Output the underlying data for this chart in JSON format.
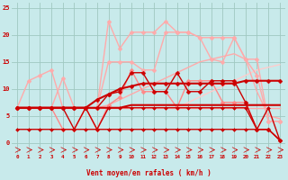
{
  "xlabel": "Vent moyen/en rafales ( km/h )",
  "xlim": [
    -0.5,
    23.5
  ],
  "ylim": [
    -2,
    26
  ],
  "xticks": [
    0,
    1,
    2,
    3,
    4,
    5,
    6,
    7,
    8,
    9,
    10,
    11,
    12,
    13,
    14,
    15,
    16,
    17,
    18,
    19,
    20,
    21,
    22,
    23
  ],
  "yticks": [
    0,
    5,
    10,
    15,
    20,
    25
  ],
  "bg_color": "#c8eaeb",
  "grid_color": "#a0c8c0",
  "lines": [
    {
      "x": [
        0,
        1,
        2,
        3,
        4,
        5,
        6,
        7,
        8,
        9,
        10,
        11,
        12,
        13,
        14,
        15,
        16,
        17,
        18,
        19,
        20,
        21,
        22,
        23
      ],
      "y": [
        6.5,
        6.5,
        6.5,
        6.5,
        6.5,
        6.5,
        6.5,
        6.5,
        6.5,
        6.5,
        6.5,
        6.5,
        6.5,
        6.5,
        6.5,
        6.5,
        6.5,
        6.5,
        6.5,
        6.5,
        6.5,
        6.5,
        6.5,
        6.5
      ],
      "color": "#ffaaaa",
      "lw": 1.0,
      "marker": null,
      "ms": 0,
      "ls": "-"
    },
    {
      "x": [
        0,
        1,
        2,
        3,
        4,
        5,
        6,
        7,
        8,
        9,
        10,
        11,
        12,
        13,
        14,
        15,
        16,
        17,
        18,
        19,
        20,
        21,
        22,
        23
      ],
      "y": [
        6.5,
        6.5,
        6.5,
        6.5,
        6.5,
        6.5,
        6.5,
        6.5,
        6.5,
        6.5,
        6.5,
        6.5,
        6.5,
        6.5,
        6.5,
        7.5,
        8.5,
        9.5,
        10.5,
        11.5,
        12.5,
        13.5,
        14.0,
        14.5
      ],
      "color": "#ffcccc",
      "lw": 1.0,
      "marker": null,
      "ms": 0,
      "ls": "-"
    },
    {
      "x": [
        0,
        1,
        2,
        3,
        4,
        5,
        6,
        7,
        8,
        9,
        10,
        11,
        12,
        13,
        14,
        15,
        16,
        17,
        18,
        19,
        20,
        21,
        22,
        23
      ],
      "y": [
        6.5,
        6.5,
        6.5,
        6.5,
        6.5,
        6.5,
        6.5,
        6.5,
        7.0,
        8.0,
        9.0,
        10.0,
        11.0,
        12.0,
        13.0,
        14.0,
        15.0,
        15.5,
        16.0,
        16.5,
        15.5,
        9.5,
        5.0,
        4.5
      ],
      "color": "#ffaaaa",
      "lw": 1.0,
      "marker": null,
      "ms": 0,
      "ls": "-"
    },
    {
      "x": [
        0,
        1,
        2,
        3,
        4,
        5,
        6,
        7,
        8,
        9,
        10,
        11,
        12,
        13,
        14,
        15,
        16,
        17,
        18,
        19,
        20,
        21,
        22,
        23
      ],
      "y": [
        6.5,
        11.5,
        12.5,
        13.5,
        6.5,
        6.5,
        6.5,
        6.5,
        22.5,
        17.5,
        20.5,
        20.5,
        20.5,
        22.5,
        20.5,
        20.5,
        19.5,
        19.5,
        19.5,
        19.5,
        15.5,
        12.5,
        4.0,
        4.0
      ],
      "color": "#ffaaaa",
      "lw": 1.0,
      "marker": "D",
      "ms": 2.5,
      "ls": "-"
    },
    {
      "x": [
        0,
        1,
        2,
        3,
        4,
        5,
        6,
        7,
        8,
        9,
        10,
        11,
        12,
        13,
        14,
        15,
        16,
        17,
        18,
        19,
        20,
        21,
        22,
        23
      ],
      "y": [
        6.5,
        6.5,
        6.5,
        6.5,
        12.0,
        6.5,
        6.5,
        6.5,
        15.0,
        15.0,
        15.0,
        13.5,
        13.5,
        20.5,
        20.5,
        20.5,
        19.5,
        15.5,
        15.0,
        19.5,
        15.5,
        15.5,
        4.0,
        4.0
      ],
      "color": "#ffaaaa",
      "lw": 1.0,
      "marker": "D",
      "ms": 2.5,
      "ls": "-"
    },
    {
      "x": [
        0,
        1,
        2,
        3,
        4,
        5,
        6,
        7,
        8,
        9,
        10,
        11,
        12,
        13,
        14,
        15,
        16,
        17,
        18,
        19,
        20,
        21,
        22,
        23
      ],
      "y": [
        6.5,
        6.5,
        6.5,
        6.5,
        2.5,
        2.5,
        6.5,
        2.5,
        7.0,
        8.5,
        13.5,
        9.5,
        9.5,
        9.5,
        6.5,
        11.5,
        11.5,
        11.5,
        7.5,
        7.5,
        7.5,
        2.5,
        2.5,
        0.5
      ],
      "color": "#ff8888",
      "lw": 1.0,
      "marker": "D",
      "ms": 2.5,
      "ls": "-"
    },
    {
      "x": [
        0,
        1,
        2,
        3,
        4,
        5,
        6,
        7,
        8,
        9,
        10,
        11,
        12,
        13,
        14,
        15,
        16,
        17,
        18,
        19,
        20,
        21,
        22,
        23
      ],
      "y": [
        2.5,
        2.5,
        2.5,
        2.5,
        2.5,
        2.5,
        2.5,
        2.5,
        2.5,
        2.5,
        2.5,
        2.5,
        2.5,
        2.5,
        2.5,
        2.5,
        2.5,
        2.5,
        2.5,
        2.5,
        2.5,
        2.5,
        2.5,
        0.5
      ],
      "color": "#cc0000",
      "lw": 1.0,
      "marker": "D",
      "ms": 2.0,
      "ls": "-"
    },
    {
      "x": [
        0,
        1,
        2,
        3,
        4,
        5,
        6,
        7,
        8,
        9,
        10,
        11,
        12,
        13,
        14,
        15,
        16,
        17,
        18,
        19,
        20,
        21,
        22,
        23
      ],
      "y": [
        6.5,
        6.5,
        6.5,
        6.5,
        6.5,
        2.5,
        6.5,
        2.5,
        6.5,
        6.5,
        6.5,
        6.5,
        6.5,
        6.5,
        6.5,
        6.5,
        6.5,
        6.5,
        6.5,
        6.5,
        6.5,
        2.5,
        6.5,
        0.5
      ],
      "color": "#cc0000",
      "lw": 1.0,
      "marker": "D",
      "ms": 2.0,
      "ls": "-"
    },
    {
      "x": [
        0,
        1,
        2,
        3,
        4,
        5,
        6,
        7,
        8,
        9,
        10,
        11,
        12,
        13,
        14,
        15,
        16,
        17,
        18,
        19,
        20,
        21,
        22,
        23
      ],
      "y": [
        6.5,
        6.5,
        6.5,
        6.5,
        6.5,
        6.5,
        6.5,
        6.5,
        6.5,
        6.5,
        7.0,
        7.0,
        7.0,
        7.0,
        7.0,
        7.0,
        7.0,
        7.0,
        7.0,
        7.0,
        7.0,
        7.0,
        7.0,
        7.0
      ],
      "color": "#cc0000",
      "lw": 1.5,
      "marker": null,
      "ms": 0,
      "ls": "-"
    },
    {
      "x": [
        0,
        1,
        2,
        3,
        4,
        5,
        6,
        7,
        8,
        9,
        10,
        11,
        12,
        13,
        14,
        15,
        16,
        17,
        18,
        19,
        20,
        21,
        22,
        23
      ],
      "y": [
        6.5,
        6.5,
        6.5,
        6.5,
        6.5,
        6.5,
        6.5,
        8.0,
        9.0,
        10.0,
        10.5,
        11.0,
        11.0,
        11.0,
        11.0,
        11.0,
        11.0,
        11.0,
        11.0,
        11.0,
        11.5,
        11.5,
        11.5,
        11.5
      ],
      "color": "#cc0000",
      "lw": 1.5,
      "marker": "D",
      "ms": 2.5,
      "ls": "-"
    },
    {
      "x": [
        0,
        1,
        2,
        3,
        4,
        5,
        6,
        7,
        8,
        9,
        10,
        11,
        12,
        13,
        14,
        15,
        16,
        17,
        18,
        19,
        20,
        21,
        22,
        23
      ],
      "y": [
        6.5,
        6.5,
        6.5,
        6.5,
        6.5,
        6.5,
        6.5,
        6.5,
        9.0,
        9.5,
        13.0,
        13.0,
        9.5,
        9.5,
        13.0,
        9.5,
        9.5,
        11.5,
        11.5,
        11.5,
        7.5,
        2.5,
        2.5,
        0.5
      ],
      "color": "#cc0000",
      "lw": 1.0,
      "marker": "D",
      "ms": 2.5,
      "ls": "-"
    }
  ]
}
